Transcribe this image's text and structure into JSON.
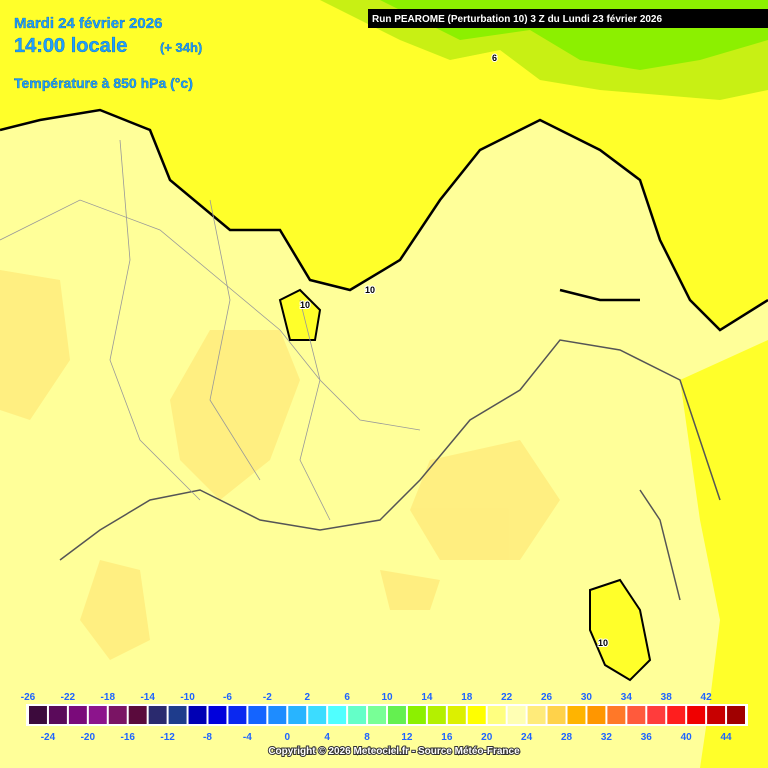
{
  "header": {
    "date": "Mardi 24 février 2026",
    "time": "14:00 locale",
    "lead": "(+ 34h)",
    "field": "Température à 850 hPa (°c)",
    "run": "Run PEAROME (Perturbation 10) 3 Z du Lundi 23 février 2026"
  },
  "contours": [
    {
      "label": "6"
    },
    {
      "label": "10"
    },
    {
      "label": "10"
    },
    {
      "label": "10"
    }
  ],
  "legend": {
    "ticks": [
      -26,
      -24,
      -22,
      -20,
      -18,
      -16,
      -14,
      -12,
      -10,
      -8,
      -6,
      -4,
      -2,
      0,
      2,
      4,
      6,
      8,
      10,
      12,
      14,
      16,
      18,
      20,
      22,
      24,
      26,
      28,
      30,
      32,
      34,
      36,
      38,
      40,
      42,
      44
    ],
    "colors": [
      "#3c0a3c",
      "#5a0a5a",
      "#7a0a7a",
      "#8c148c",
      "#7a1464",
      "#5a0a3c",
      "#2a2a6e",
      "#1e3c8c",
      "#0000b4",
      "#0000dc",
      "#0a28f0",
      "#1464ff",
      "#1e8cff",
      "#28b4ff",
      "#3cdcff",
      "#50ffff",
      "#64ffc8",
      "#78ff96",
      "#64f050",
      "#8cf000",
      "#b4f000",
      "#dcf000",
      "#ffff00",
      "#ffff80",
      "#ffffb4",
      "#ffeb7a",
      "#ffd24a",
      "#ffb400",
      "#ff9600",
      "#ff7828",
      "#ff5a3c",
      "#ff3c3c",
      "#ff1e1e",
      "#f00000",
      "#c80000",
      "#a00000"
    ]
  },
  "footer": {
    "copyright": "Copyright © 2026 Meteociel.fr - Source Météo-France"
  }
}
